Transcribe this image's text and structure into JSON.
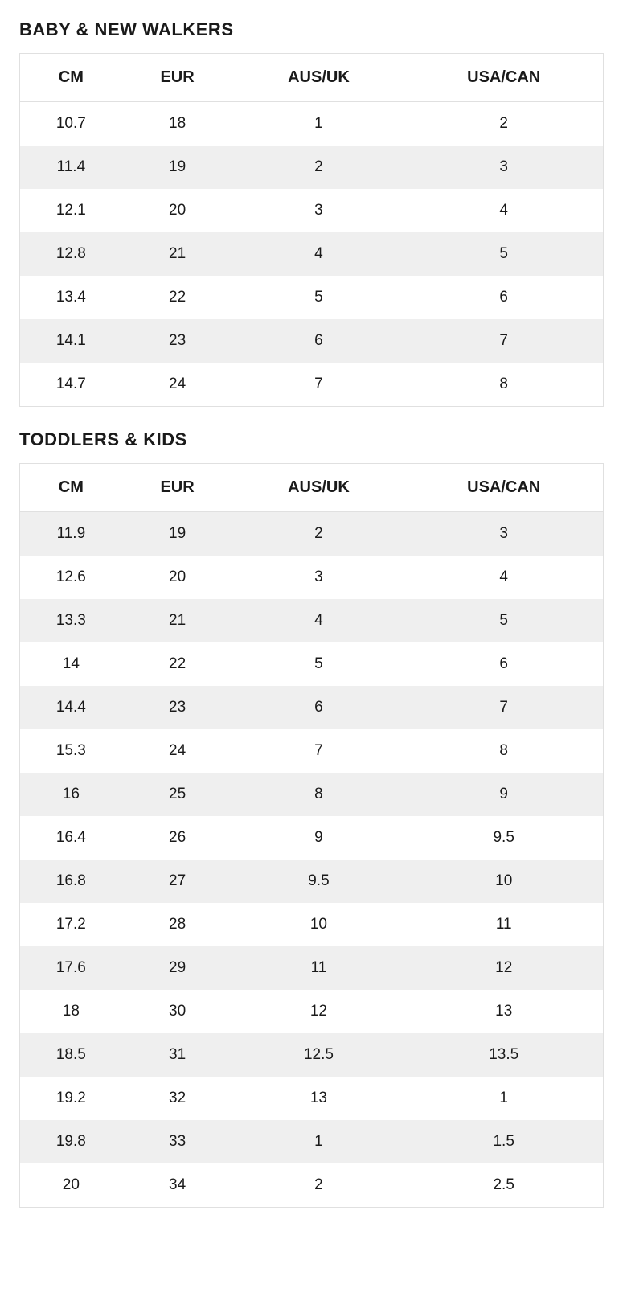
{
  "sections": [
    {
      "title": "BABY & NEW WALKERS",
      "start_shaded": false,
      "columns": [
        "CM",
        "EUR",
        "AUS/UK",
        "USA/CAN"
      ],
      "rows": [
        [
          "10.7",
          "18",
          "1",
          "2"
        ],
        [
          "11.4",
          "19",
          "2",
          "3"
        ],
        [
          "12.1",
          "20",
          "3",
          "4"
        ],
        [
          "12.8",
          "21",
          "4",
          "5"
        ],
        [
          "13.4",
          "22",
          "5",
          "6"
        ],
        [
          "14.1",
          "23",
          "6",
          "7"
        ],
        [
          "14.7",
          "24",
          "7",
          "8"
        ]
      ]
    },
    {
      "title": "TODDLERS & KIDS",
      "start_shaded": true,
      "columns": [
        "CM",
        "EUR",
        "AUS/UK",
        "USA/CAN"
      ],
      "rows": [
        [
          "11.9",
          "19",
          "2",
          "3"
        ],
        [
          "12.6",
          "20",
          "3",
          "4"
        ],
        [
          "13.3",
          "21",
          "4",
          "5"
        ],
        [
          "14",
          "22",
          "5",
          "6"
        ],
        [
          "14.4",
          "23",
          "6",
          "7"
        ],
        [
          "15.3",
          "24",
          "7",
          "8"
        ],
        [
          "16",
          "25",
          "8",
          "9"
        ],
        [
          "16.4",
          "26",
          "9",
          "9.5"
        ],
        [
          "16.8",
          "27",
          "9.5",
          "10"
        ],
        [
          "17.2",
          "28",
          "10",
          "11"
        ],
        [
          "17.6",
          "29",
          "11",
          "12"
        ],
        [
          "18",
          "30",
          "12",
          "13"
        ],
        [
          "18.5",
          "31",
          "12.5",
          "13.5"
        ],
        [
          "19.2",
          "32",
          "13",
          "1"
        ],
        [
          "19.8",
          "33",
          "1",
          "1.5"
        ],
        [
          "20",
          "34",
          "2",
          "2.5"
        ]
      ]
    }
  ],
  "style": {
    "header_fontsize": 22,
    "th_fontsize": 20,
    "td_fontsize": 19,
    "border_color": "#e0e0e0",
    "row_alt_bg": "#efefef",
    "row_bg": "#ffffff",
    "text_color": "#1a1a1a"
  }
}
